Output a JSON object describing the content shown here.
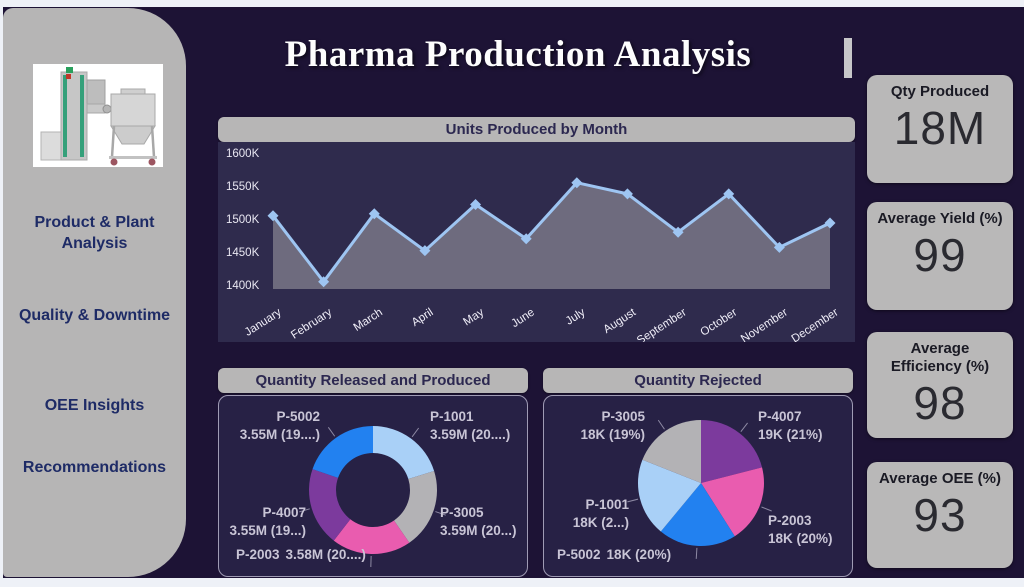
{
  "title": "Pharma Production Analysis",
  "sidebar": {
    "image": "pharma-machine-photo",
    "items": [
      {
        "label": "Product & Plant Analysis"
      },
      {
        "label": "Quality & Downtime"
      },
      {
        "label": "OEE Insights"
      },
      {
        "label": "Recommendations"
      }
    ]
  },
  "kpis": [
    {
      "label": "Qty Produced",
      "value": "18M"
    },
    {
      "label": "Average Yield (%)",
      "value": "99"
    },
    {
      "label": "Average Efficiency (%)",
      "value": "98"
    },
    {
      "label": "Average OEE (%)",
      "value": "93"
    }
  ],
  "colors": {
    "canvas_bg": "#1d1335",
    "sidebar_bg": "#b6b5b5",
    "header_bar": "#b7b6b6",
    "nav_text": "#1e2b66",
    "plot_bg": "#2f2b4d",
    "label_text": "#c9c5d6"
  },
  "chart_data": [
    {
      "type": "area",
      "title": "Units Produced by Month",
      "x": [
        "January",
        "February",
        "March",
        "April",
        "May",
        "June",
        "July",
        "August",
        "September",
        "October",
        "November",
        "December"
      ],
      "values": [
        1505,
        1405,
        1508,
        1452,
        1522,
        1470,
        1555,
        1538,
        1480,
        1538,
        1457,
        1494
      ],
      "unit": "K",
      "ylim": [
        1400,
        1600
      ],
      "yticks": [
        {
          "label": "1600K",
          "v": 1600
        },
        {
          "label": "1550K",
          "v": 1550
        },
        {
          "label": "1500K",
          "v": 1500
        },
        {
          "label": "1450K",
          "v": 1450
        },
        {
          "label": "1400K",
          "v": 1400
        }
      ],
      "line_color": "#9ec5f2",
      "area_color": "#6e6b7e",
      "grid": false,
      "legend": false
    },
    {
      "type": "donut",
      "title": "Quantity Released and Produced",
      "slices": [
        {
          "name": "P-1001",
          "value_label": "3.59M (20....)",
          "value": "3.59M",
          "pct": 20.2,
          "color": "#a9d0f7"
        },
        {
          "name": "P-3005",
          "value_label": "3.59M (20...)",
          "value": "3.59M",
          "pct": 20.2,
          "color": "#b3b2b5"
        },
        {
          "name": "P-2003",
          "value_label": "3.58M (20....)",
          "value": "3.58M",
          "pct": 20.1,
          "color": "#e95caf"
        },
        {
          "name": "P-4007",
          "value_label": "3.55M (19...)",
          "value": "3.55M",
          "pct": 19.8,
          "color": "#7c3a9d"
        },
        {
          "name": "P-5002",
          "value_label": "3.55M (19....)",
          "value": "3.55M",
          "pct": 19.7,
          "color": "#2281f0"
        }
      ]
    },
    {
      "type": "pie",
      "title": "Quantity Rejected",
      "slices": [
        {
          "name": "P-4007",
          "value_label": "19K (21%)",
          "value": "19K",
          "pct": 21,
          "color": "#7c3a9d"
        },
        {
          "name": "P-2003",
          "value_label": "18K (20%)",
          "value": "18K",
          "pct": 20,
          "color": "#e95caf"
        },
        {
          "name": "P-5002",
          "value_label": "18K (20%)",
          "value": "18K",
          "pct": 20,
          "color": "#2281f0"
        },
        {
          "name": "P-1001",
          "value_label": "18K (2...)",
          "value": "18K",
          "pct": 20,
          "color": "#a9d0f7"
        },
        {
          "name": "P-3005",
          "value_label": "18K (19%)",
          "value": "18K",
          "pct": 19,
          "color": "#b3b2b5"
        }
      ]
    }
  ]
}
